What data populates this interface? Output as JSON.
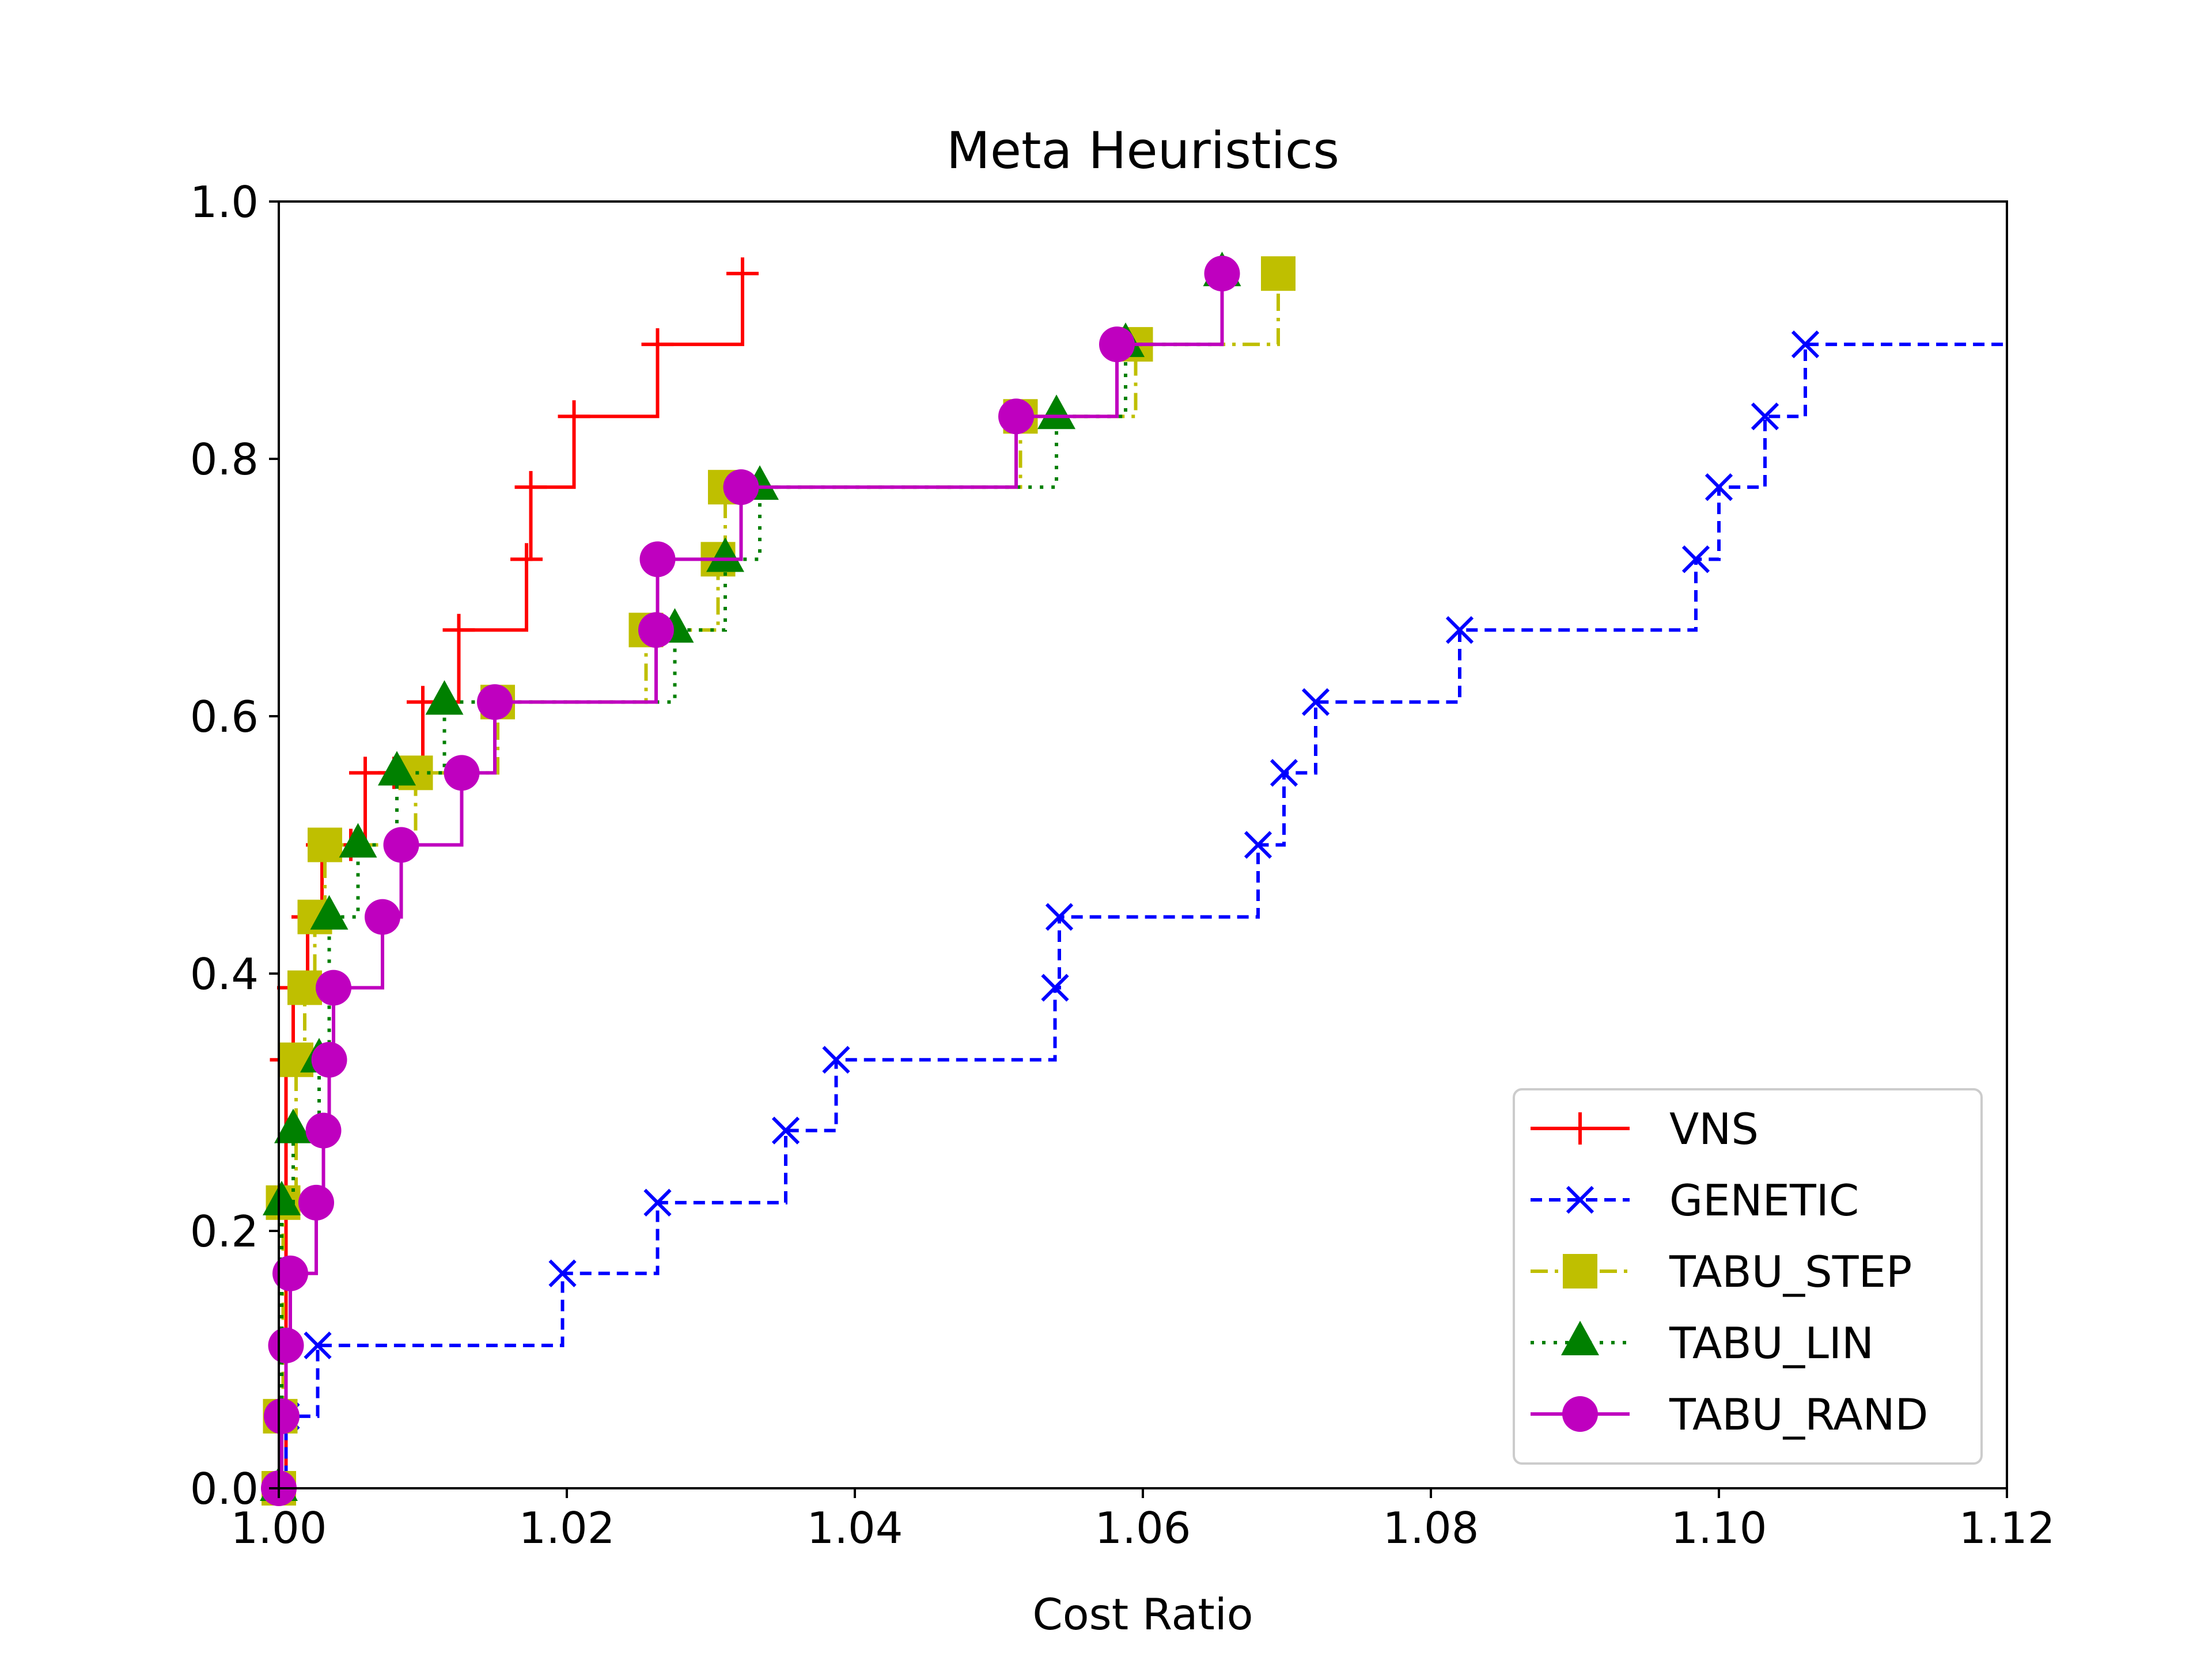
{
  "chart_data": {
    "type": "line",
    "title": "Meta Heuristics",
    "xlabel": "Cost Ratio",
    "ylabel": "",
    "xlim": [
      1.0,
      1.12
    ],
    "ylim": [
      0.0,
      1.0
    ],
    "xticks": [
      "1.00",
      "1.02",
      "1.04",
      "1.06",
      "1.08",
      "1.10",
      "1.12"
    ],
    "yticks": [
      "0.0",
      "0.2",
      "0.4",
      "0.6",
      "0.8",
      "1.0"
    ],
    "grid": false,
    "legend_position": "lower-right",
    "step": "post",
    "series": [
      {
        "name": "VNS",
        "color": "#ff0000",
        "linestyle": "solid",
        "marker": "plus",
        "x": [
          1.0,
          1.0005,
          1.001,
          1.002,
          1.003,
          1.004,
          1.005,
          1.006,
          1.008,
          1.01,
          1.0125,
          1.0172,
          1.0175,
          1.0205,
          1.0263,
          1.0322
        ],
        "y": [
          0.0,
          0.333,
          0.389,
          0.444,
          0.5,
          0.5,
          0.5,
          0.556,
          0.556,
          0.611,
          0.667,
          0.722,
          0.778,
          0.833,
          0.889,
          0.944
        ]
      },
      {
        "name": "GENETIC",
        "color": "#0000ff",
        "linestyle": "dashed",
        "marker": "x",
        "x": [
          1.0,
          1.0005,
          1.0027,
          1.0197,
          1.0263,
          1.0352,
          1.0387,
          1.0539,
          1.0542,
          1.068,
          1.0698,
          1.072,
          1.082,
          1.0984,
          1.1,
          1.1032,
          1.106,
          1.12
        ],
        "y": [
          0.0,
          0.056,
          0.111,
          0.167,
          0.222,
          0.278,
          0.333,
          0.389,
          0.444,
          0.5,
          0.556,
          0.611,
          0.667,
          0.722,
          0.778,
          0.833,
          0.889,
          0.889
        ]
      },
      {
        "name": "TABU_STEP",
        "color": "#bfbf00",
        "linestyle": "dashdot",
        "marker": "square",
        "x": [
          1.0,
          1.0001,
          1.0003,
          1.0012,
          1.0018,
          1.0025,
          1.0032,
          1.0095,
          1.0152,
          1.0255,
          1.0305,
          1.031,
          1.0515,
          1.0595,
          1.0694
        ],
        "y": [
          0.0,
          0.056,
          0.222,
          0.333,
          0.389,
          0.444,
          0.5,
          0.556,
          0.611,
          0.667,
          0.722,
          0.778,
          0.833,
          0.889,
          0.944
        ]
      },
      {
        "name": "TABU_LIN",
        "color": "#008000",
        "linestyle": "dotted",
        "marker": "triangle",
        "x": [
          1.0,
          1.0002,
          1.001,
          1.0028,
          1.0035,
          1.0055,
          1.0082,
          1.0115,
          1.0275,
          1.031,
          1.0334,
          1.054,
          1.0588,
          1.0655
        ],
        "y": [
          0.0,
          0.222,
          0.278,
          0.333,
          0.444,
          0.5,
          0.556,
          0.611,
          0.667,
          0.722,
          0.778,
          0.833,
          0.889,
          0.944
        ]
      },
      {
        "name": "TABU_RAND",
        "color": "#bf00bf",
        "linestyle": "solid",
        "marker": "circle",
        "x": [
          1.0,
          1.0002,
          1.0005,
          1.0008,
          1.0026,
          1.0031,
          1.0035,
          1.0038,
          1.0072,
          1.0085,
          1.0127,
          1.015,
          1.0262,
          1.0263,
          1.0321,
          1.0512,
          1.0582,
          1.0655
        ],
        "y": [
          0.0,
          0.056,
          0.111,
          0.167,
          0.222,
          0.278,
          0.333,
          0.389,
          0.444,
          0.5,
          0.556,
          0.611,
          0.667,
          0.722,
          0.778,
          0.833,
          0.889,
          0.944
        ]
      }
    ]
  }
}
